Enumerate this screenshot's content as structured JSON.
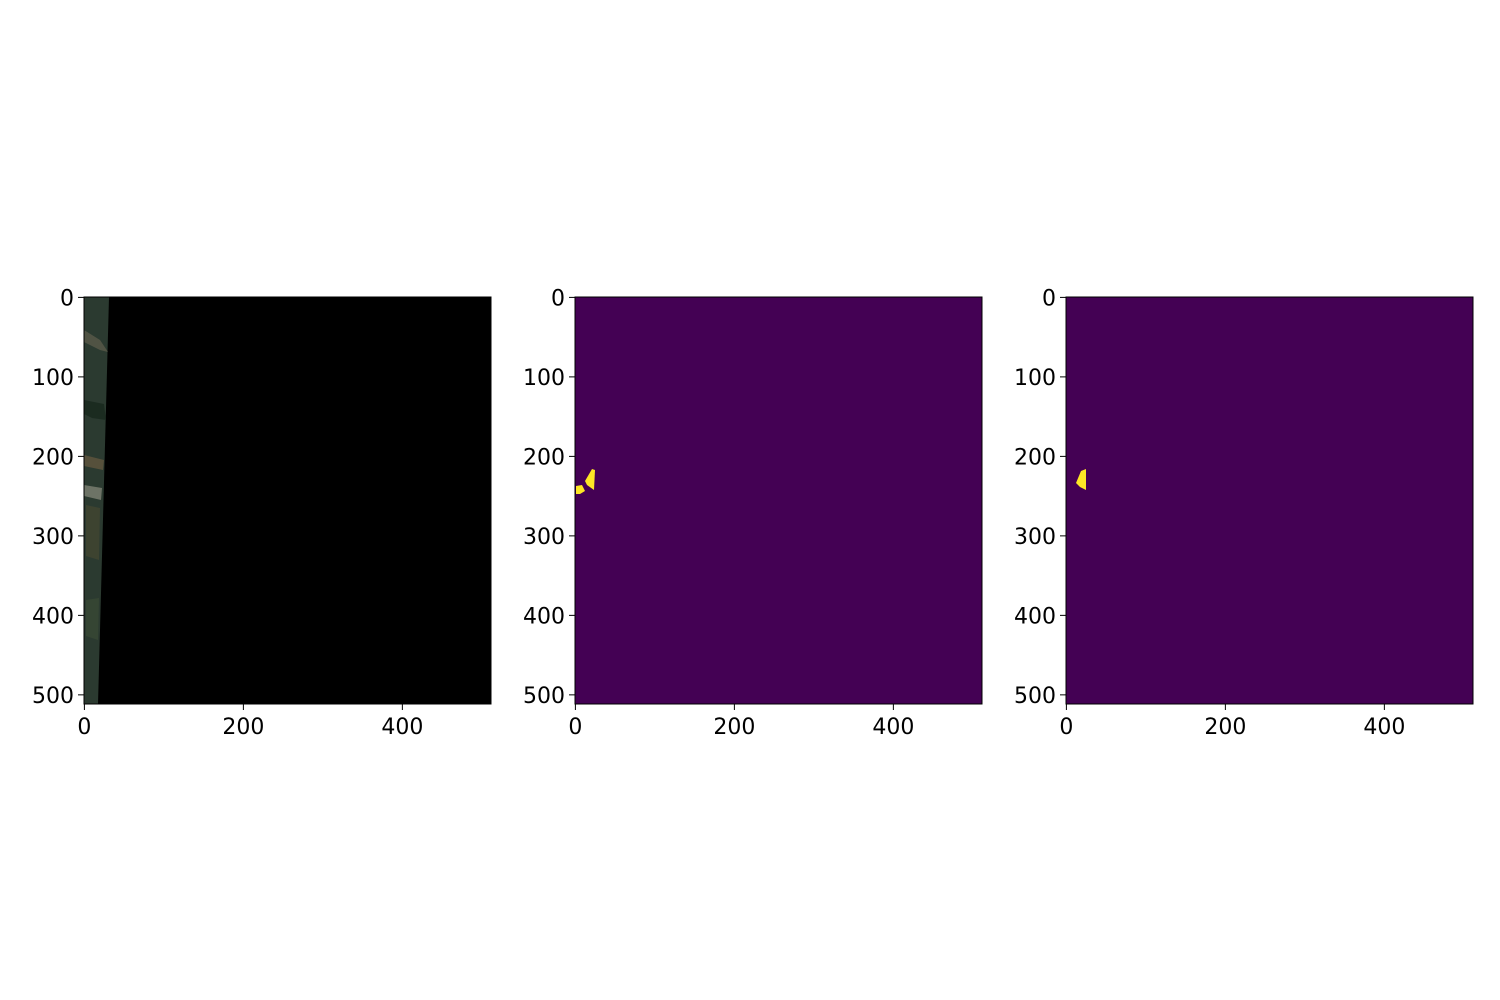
{
  "colors": {
    "background": "#ffffff",
    "mask_background": "#440154",
    "mask_foreground": "#fde725",
    "image_fill": "#000000",
    "image_strip": "#2b3a30",
    "axis": "#000000"
  },
  "image_shape": [
    512,
    512
  ],
  "panels": [
    {
      "name": "panel-image",
      "kind": "rgb-image",
      "x_ticks": [
        "0",
        "200",
        "400"
      ],
      "y_ticks": [
        "0",
        "100",
        "200",
        "300",
        "400",
        "500"
      ]
    },
    {
      "name": "panel-mask-ground-truth",
      "kind": "mask",
      "x_ticks": [
        "0",
        "200",
        "400"
      ],
      "y_ticks": [
        "0",
        "100",
        "200",
        "300",
        "400",
        "500"
      ]
    },
    {
      "name": "panel-mask-prediction",
      "kind": "mask",
      "x_ticks": [
        "0",
        "200",
        "400"
      ],
      "y_ticks": [
        "0",
        "100",
        "200",
        "300",
        "400",
        "500"
      ]
    }
  ]
}
